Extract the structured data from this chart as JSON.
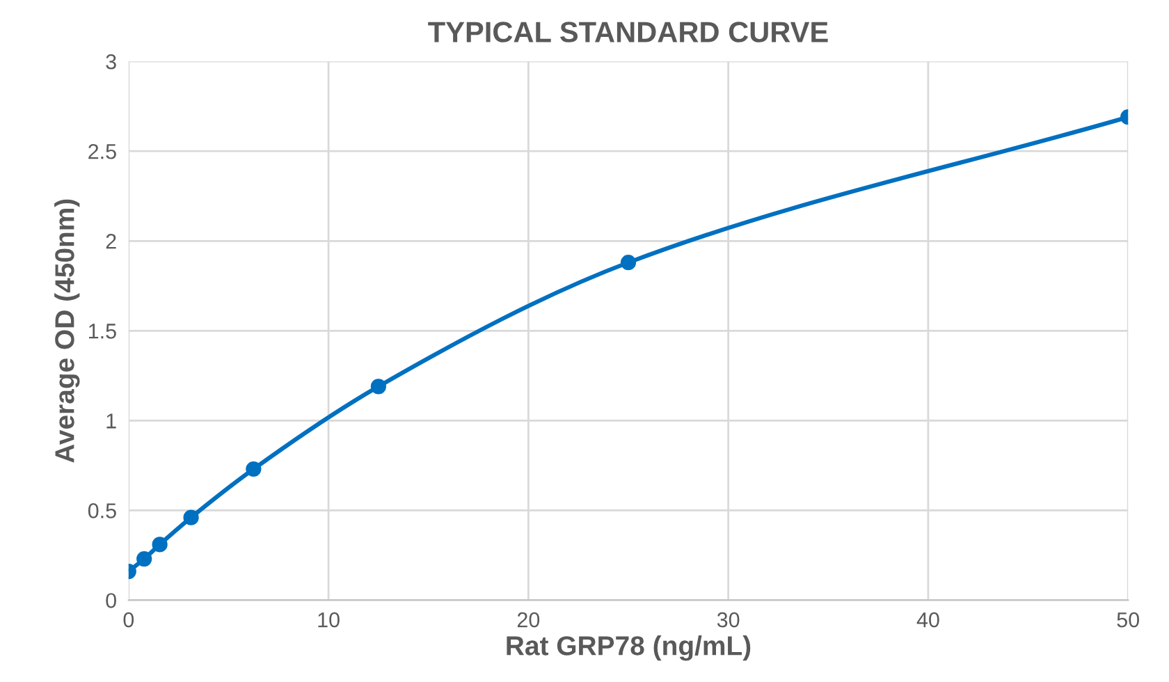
{
  "chart_data": {
    "type": "line",
    "title": "TYPICAL STANDARD CURVE",
    "xlabel": "Rat GRP78 (ng/mL)",
    "ylabel": "Average OD (450nm)",
    "x": [
      0,
      0.78,
      1.56,
      3.125,
      6.25,
      12.5,
      25,
      50
    ],
    "series": [
      {
        "color": "#0070c0",
        "values": [
          0.16,
          0.23,
          0.31,
          0.46,
          0.73,
          1.19,
          1.88,
          2.69
        ]
      }
    ],
    "xlim": [
      0,
      50
    ],
    "xticks": [
      0,
      10,
      20,
      30,
      40,
      50
    ],
    "ylim": [
      0,
      3
    ],
    "yticks": [
      0,
      0.5,
      1,
      1.5,
      2,
      2.5,
      3
    ],
    "grid": true,
    "marker": "circle",
    "line_style": "solid"
  }
}
